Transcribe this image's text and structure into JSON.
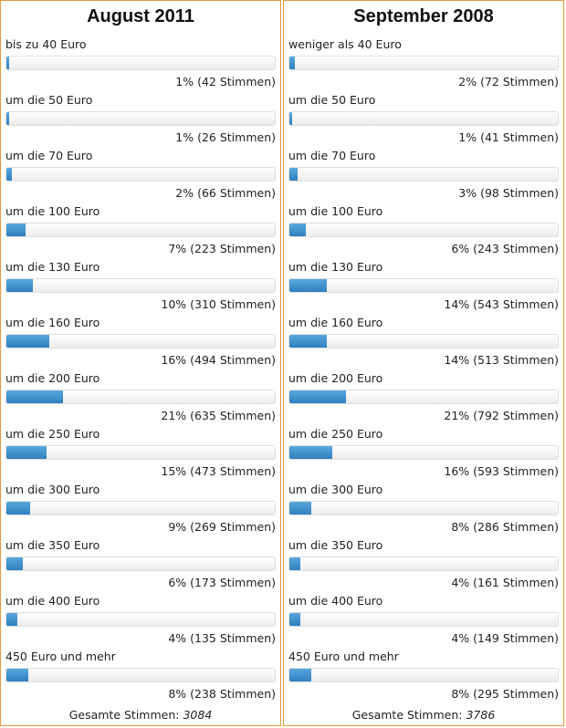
{
  "chart_data": [
    {
      "type": "bar",
      "title": "August 2011",
      "categories": [
        "bis zu 40 Euro",
        "um die 50 Euro",
        "um die 70 Euro",
        "um die 100 Euro",
        "um die 130 Euro",
        "um die 160 Euro",
        "um die 200 Euro",
        "um die 250 Euro",
        "um die 300 Euro",
        "um die 350 Euro",
        "um die 400 Euro",
        "450 Euro und mehr"
      ],
      "percent": [
        1,
        1,
        2,
        7,
        10,
        16,
        21,
        15,
        9,
        6,
        4,
        8
      ],
      "votes": [
        42,
        26,
        66,
        223,
        310,
        494,
        635,
        473,
        269,
        173,
        135,
        238
      ],
      "results": [
        "1% (42 Stimmen)",
        "1% (26 Stimmen)",
        "2% (66 Stimmen)",
        "7% (223 Stimmen)",
        "10% (310 Stimmen)",
        "16% (494 Stimmen)",
        "21% (635 Stimmen)",
        "15% (473 Stimmen)",
        "9% (269 Stimmen)",
        "6% (173 Stimmen)",
        "4% (135 Stimmen)",
        "8% (238 Stimmen)"
      ],
      "total_label": "Gesamte Stimmen:",
      "total": "3084"
    },
    {
      "type": "bar",
      "title": "September 2008",
      "categories": [
        "weniger als 40 Euro",
        "um die 50 Euro",
        "um die 70 Euro",
        "um die 100 Euro",
        "um die 130 Euro",
        "um die 160 Euro",
        "um die 200 Euro",
        "um die 250 Euro",
        "um die 300 Euro",
        "um die 350 Euro",
        "um die 400 Euro",
        "450 Euro und mehr"
      ],
      "percent": [
        2,
        1,
        3,
        6,
        14,
        14,
        21,
        16,
        8,
        4,
        4,
        8
      ],
      "votes": [
        72,
        41,
        98,
        243,
        543,
        513,
        792,
        593,
        286,
        161,
        149,
        295
      ],
      "results": [
        "2% (72 Stimmen)",
        "1% (41 Stimmen)",
        "3% (98 Stimmen)",
        "6% (243 Stimmen)",
        "14% (543 Stimmen)",
        "14% (513 Stimmen)",
        "21% (792 Stimmen)",
        "16% (593 Stimmen)",
        "8% (286 Stimmen)",
        "4% (161 Stimmen)",
        "4% (149 Stimmen)",
        "8% (295 Stimmen)"
      ],
      "total_label": "Gesamte Stimmen:",
      "total": "3786"
    }
  ]
}
